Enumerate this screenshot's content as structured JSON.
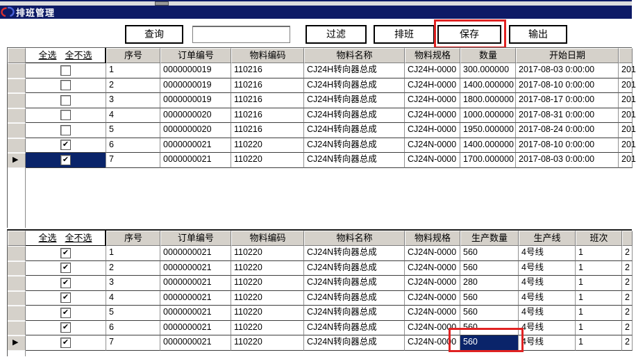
{
  "window": {
    "title": "排班管理"
  },
  "toolbar": {
    "query": "查询",
    "search_value": "",
    "filter": "过滤",
    "schedule": "排班",
    "save": "保存",
    "output": "输出"
  },
  "colors": {
    "titlebar": "#0d1a66",
    "selection": "#0a246a",
    "highlight_red": "#e02222",
    "header_bg": "#d5d1ca"
  },
  "grids": {
    "top": {
      "select_all": "全选",
      "deselect_all": "全不选",
      "columns": [
        "序号",
        "订单编号",
        "物料编码",
        "物料名称",
        "物料规格",
        "数量",
        "开始日期",
        ""
      ],
      "current_row": 7,
      "selected_column": "checkbox",
      "rows": [
        {
          "checked": false,
          "cells": [
            "1",
            "0000000019",
            "110216",
            "CJ24H转向器总成",
            "CJ24H-0000",
            "300.000000",
            "2017-08-03 0:00:00",
            "201"
          ]
        },
        {
          "checked": false,
          "cells": [
            "2",
            "0000000019",
            "110216",
            "CJ24H转向器总成",
            "CJ24H-0000",
            "1400.000000",
            "2017-08-10 0:00:00",
            "201"
          ]
        },
        {
          "checked": false,
          "cells": [
            "3",
            "0000000019",
            "110216",
            "CJ24H转向器总成",
            "CJ24H-0000",
            "1800.000000",
            "2017-08-17 0:00:00",
            "201"
          ]
        },
        {
          "checked": false,
          "cells": [
            "4",
            "0000000020",
            "110216",
            "CJ24H转向器总成",
            "CJ24H-0000",
            "1000.000000",
            "2017-08-31 0:00:00",
            "201"
          ]
        },
        {
          "checked": false,
          "cells": [
            "5",
            "0000000020",
            "110216",
            "CJ24H转向器总成",
            "CJ24H-0000",
            "1950.000000",
            "2017-08-24 0:00:00",
            "201"
          ]
        },
        {
          "checked": true,
          "cells": [
            "6",
            "0000000021",
            "110220",
            "CJ24N转向器总成",
            "CJ24N-0000",
            "1400.000000",
            "2017-08-10 0:00:00",
            "201"
          ]
        },
        {
          "checked": true,
          "cells": [
            "7",
            "0000000021",
            "110220",
            "CJ24N转向器总成",
            "CJ24N-0000",
            "1700.000000",
            "2017-08-03 0:00:00",
            "201"
          ]
        }
      ]
    },
    "bottom": {
      "select_all": "全选",
      "deselect_all": "全不选",
      "columns": [
        "序号",
        "订单编号",
        "物料编码",
        "物料名称",
        "物料规格",
        "生产数量",
        "生产线",
        "班次",
        ""
      ],
      "current_row": 7,
      "selected_column": "生产数量",
      "rows": [
        {
          "checked": true,
          "cells": [
            "1",
            "0000000021",
            "110220",
            "CJ24N转向器总成",
            "CJ24N-0000",
            "560",
            "4号线",
            "1",
            "2"
          ]
        },
        {
          "checked": true,
          "cells": [
            "2",
            "0000000021",
            "110220",
            "CJ24N转向器总成",
            "CJ24N-0000",
            "560",
            "4号线",
            "1",
            "2"
          ]
        },
        {
          "checked": true,
          "cells": [
            "3",
            "0000000021",
            "110220",
            "CJ24N转向器总成",
            "CJ24N-0000",
            "280",
            "4号线",
            "1",
            "2"
          ]
        },
        {
          "checked": true,
          "cells": [
            "4",
            "0000000021",
            "110220",
            "CJ24N转向器总成",
            "CJ24N-0000",
            "560",
            "4号线",
            "1",
            "2"
          ]
        },
        {
          "checked": true,
          "cells": [
            "5",
            "0000000021",
            "110220",
            "CJ24N转向器总成",
            "CJ24N-0000",
            "560",
            "4号线",
            "1",
            "2"
          ]
        },
        {
          "checked": true,
          "cells": [
            "6",
            "0000000021",
            "110220",
            "CJ24N转向器总成",
            "CJ24N-0000",
            "560",
            "4号线",
            "1",
            "2"
          ]
        },
        {
          "checked": true,
          "cells": [
            "7",
            "0000000021",
            "110220",
            "CJ24N转向器总成",
            "CJ24N-0000",
            "560",
            "4号线",
            "1",
            "2"
          ]
        }
      ]
    }
  }
}
